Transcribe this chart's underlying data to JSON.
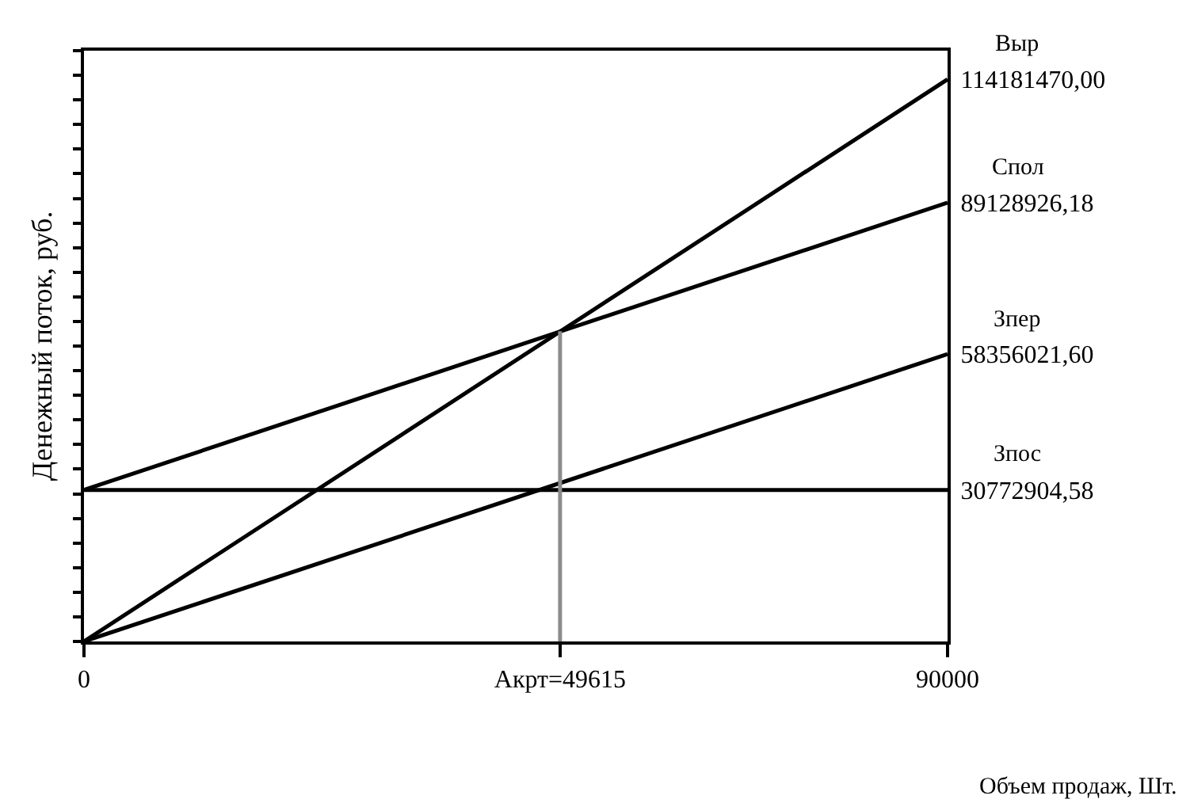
{
  "chart_data": {
    "type": "line",
    "xlabel": "Объем продаж, Шт.",
    "ylabel": "Денежный поток, руб.",
    "xlim": [
      0,
      90000
    ],
    "xticks": [
      0,
      {
        "value": 49615,
        "label": "Акрт=49615"
      },
      90000
    ],
    "y2lim": [
      0,
      120000000
    ],
    "y2ticks": [
      {
        "value": 30772904.58,
        "label": "30772904,58"
      },
      {
        "value": 58356021.6,
        "label": "58356021,60"
      },
      {
        "value": 89128926.18,
        "label": "89128926,18"
      },
      {
        "value": 114181470,
        "label": "114181470,00"
      }
    ],
    "grid": false,
    "legend": false,
    "marker": "none",
    "line_style": "solid",
    "series": [
      {
        "name": "Выр",
        "color": "#000000",
        "axis": "y2",
        "x": [
          0,
          90000
        ],
        "values": [
          0,
          114181470
        ]
      },
      {
        "name": "Спол",
        "color": "#000000",
        "axis": "y2",
        "x": [
          0,
          90000
        ],
        "values": [
          30772904.58,
          89128926.18
        ]
      },
      {
        "name": "Зпер",
        "color": "#000000",
        "axis": "y2",
        "x": [
          0,
          90000
        ],
        "values": [
          0,
          58356021.6
        ]
      },
      {
        "name": "Зпос",
        "color": "#000000",
        "axis": "y2",
        "x": [
          0,
          90000
        ],
        "values": [
          30772904.58,
          30772904.58
        ]
      },
      {
        "color": "#8c8c8c",
        "axis": "y2",
        "x": [
          49615,
          49615
        ],
        "values": [
          0,
          63000000
        ]
      }
    ]
  }
}
